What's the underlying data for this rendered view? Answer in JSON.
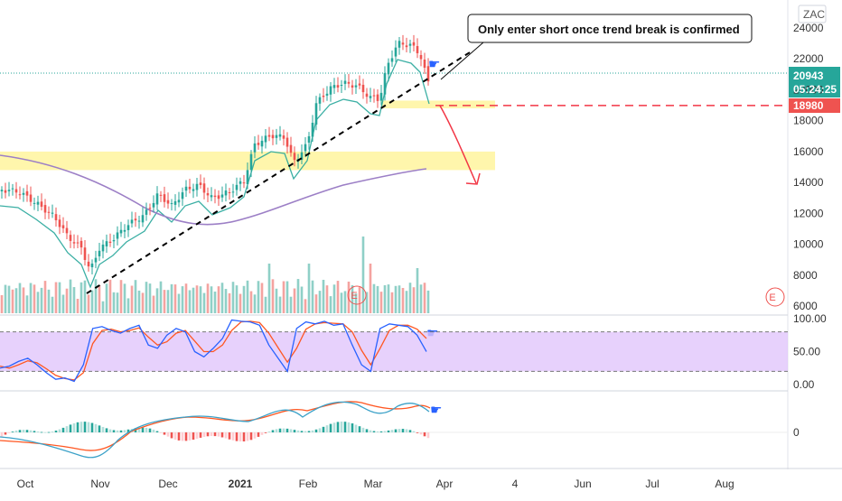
{
  "symbol": "ZAC",
  "annotation": "Only enter short once trend break is confirmed",
  "price_badge": {
    "last": "20943",
    "countdown": "05:24:25",
    "target": "18980",
    "last_color": "#26a69a",
    "target_color": "#ef5350"
  },
  "earnings_marker": "E",
  "colors": {
    "up": "#26a69a",
    "down": "#ef5350",
    "ema_fast": "#26a69a",
    "sma_slow": "#9c7fc6",
    "zone": "#fff59d",
    "stoch_k": "#2962ff",
    "stoch_d": "#ff5722",
    "stoch_band": "#e1c6fb",
    "arrow": "#f23645"
  },
  "chart_data": [
    {
      "type": "candlestick",
      "title": "ZAC",
      "x_ticks": [
        "Oct",
        "Nov",
        "Dec",
        "2021",
        "Feb",
        "Mar",
        "Apr",
        "4",
        "Jun",
        "Jul",
        "Aug"
      ],
      "y_ticks": [
        24000,
        22000,
        20000,
        18000,
        16000,
        14000,
        12000,
        10000,
        8000,
        6000
      ],
      "ylim": [
        5300,
        25000
      ],
      "ohlc_monthly_approx": [
        {
          "period": "Oct",
          "open": 13900,
          "high": 14100,
          "low": 10200,
          "close": 10600
        },
        {
          "period": "Nov",
          "open": 10600,
          "high": 12900,
          "low": 7000,
          "close": 12700
        },
        {
          "period": "Dec",
          "open": 12700,
          "high": 14700,
          "low": 11500,
          "close": 13400
        },
        {
          "period": "Jan",
          "open": 13400,
          "high": 17600,
          "low": 12700,
          "close": 16200
        },
        {
          "period": "Feb",
          "open": 16200,
          "high": 21500,
          "low": 14800,
          "close": 20600
        },
        {
          "period": "Mar",
          "open": 20600,
          "high": 23700,
          "low": 18500,
          "close": 20943
        }
      ],
      "last_price": 20943,
      "target_price": 18980,
      "resistance_zone": [
        14800,
        16000
      ],
      "breakdown_zone": [
        18800,
        19300
      ],
      "volume_axis_label": "",
      "series": [
        {
          "name": "",
          "kind": "ema_fast"
        },
        {
          "name": "",
          "kind": "sma_slow"
        }
      ]
    },
    {
      "type": "line",
      "title": "",
      "y_ticks": [
        "100.00",
        "50.00",
        "0.00"
      ],
      "ylim": [
        0,
        100
      ],
      "band": [
        20,
        80
      ],
      "series": [
        {
          "name": "",
          "values": [
            25,
            28,
            35,
            40,
            30,
            18,
            8,
            10,
            5,
            30,
            85,
            88,
            82,
            78,
            85,
            90,
            60,
            55,
            75,
            85,
            80,
            50,
            42,
            55,
            70,
            98,
            96,
            95,
            90,
            60,
            40,
            20,
            85,
            95,
            92,
            96,
            90,
            92,
            60,
            30,
            20,
            85,
            92,
            90,
            88,
            75,
            50
          ]
        },
        {
          "name": "",
          "values": [
            28,
            25,
            30,
            36,
            33,
            24,
            14,
            9,
            7,
            18,
            62,
            82,
            84,
            80,
            82,
            86,
            72,
            60,
            65,
            78,
            82,
            66,
            50,
            50,
            60,
            82,
            95,
            96,
            94,
            78,
            56,
            34,
            55,
            84,
            92,
            94,
            93,
            92,
            80,
            52,
            30,
            55,
            82,
            90,
            90,
            84,
            70
          ]
        }
      ]
    },
    {
      "type": "bar",
      "title": "",
      "y_ticks": [
        "0"
      ],
      "series": [
        {
          "name": "",
          "kind": "macd_line"
        },
        {
          "name": "",
          "kind": "signal_line"
        },
        {
          "name": "",
          "kind": "histogram"
        }
      ]
    }
  ]
}
